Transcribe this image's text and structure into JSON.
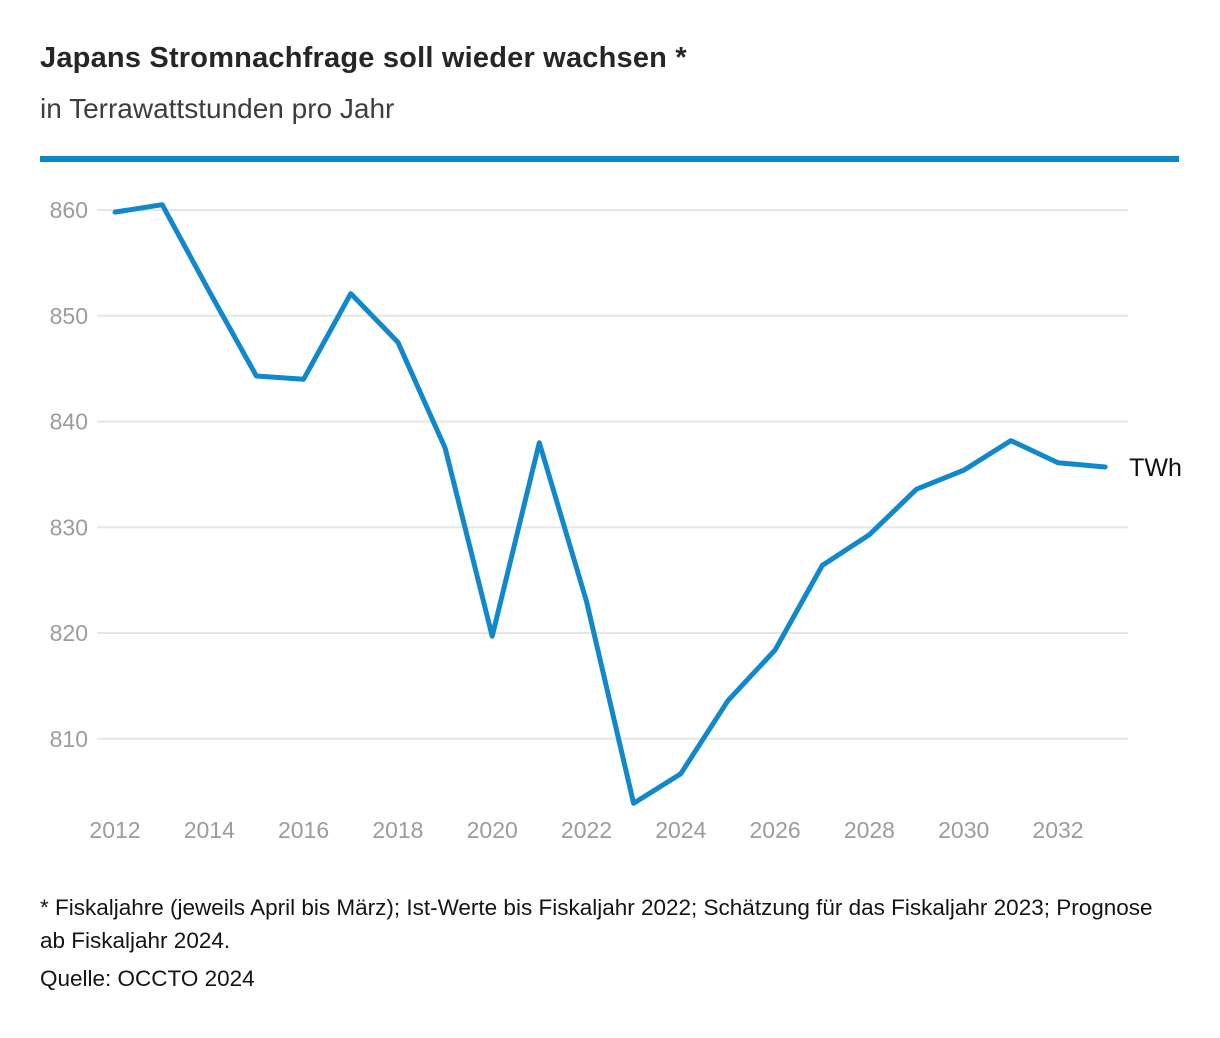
{
  "header": {
    "title": "Japans Stromnachfrage soll wieder wachsen *",
    "subtitle": "in Terrawattstunden pro Jahr"
  },
  "footer": {
    "footnote": "* Fiskaljahre (jeweils April bis März); Ist-Werte bis Fiskaljahr 2022; Schätzung für das Fiskaljahr 2023; Prognose ab Fiskaljahr 2024.",
    "source": "Quelle: OCCTO 2024"
  },
  "colors": {
    "accent": "#0b87c9",
    "line": "#1088cb",
    "grid": "#e6e6e6",
    "axis_text": "#9c9c9c",
    "unit_text": "#0f0f0f"
  },
  "chart_data": {
    "type": "line",
    "title": "Japans Stromnachfrage soll wieder wachsen *",
    "subtitle": "in Terrawattstunden pro Jahr",
    "unit_label": "TWh",
    "x": [
      2012,
      2013,
      2014,
      2015,
      2016,
      2017,
      2018,
      2019,
      2020,
      2021,
      2022,
      2023,
      2024,
      2025,
      2026,
      2027,
      2028,
      2029,
      2030,
      2031,
      2032,
      2033
    ],
    "values": [
      859.8,
      860.5,
      852.3,
      844.3,
      844.0,
      852.1,
      847.5,
      837.5,
      819.7,
      838.0,
      823.0,
      803.9,
      806.7,
      813.6,
      818.4,
      826.4,
      829.3,
      833.6,
      835.4,
      838.2,
      836.1,
      835.7
    ],
    "xticks": [
      2012,
      2014,
      2016,
      2018,
      2020,
      2022,
      2024,
      2026,
      2028,
      2030,
      2032
    ],
    "yticks": [
      810,
      820,
      830,
      840,
      850,
      860
    ],
    "xlim": [
      2012,
      2033.5
    ],
    "ylim": [
      803,
      861
    ],
    "grid": true,
    "legend_position": "line-end"
  }
}
